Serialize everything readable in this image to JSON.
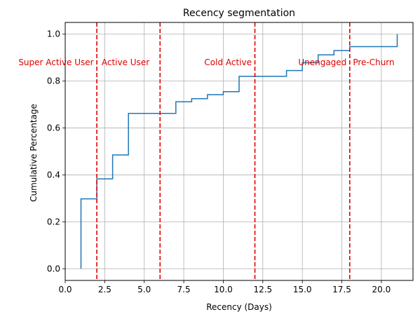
{
  "chart_data": {
    "type": "line",
    "title": "Recency segmentation",
    "xlabel": "Recency (Days)",
    "ylabel": "Cumulative Percentage",
    "xlim": [
      0,
      22
    ],
    "ylim": [
      -0.05,
      1.05
    ],
    "grid": true,
    "x_ticks": [
      0.0,
      2.5,
      5.0,
      7.5,
      10.0,
      12.5,
      15.0,
      17.5,
      20.0
    ],
    "x_tick_labels": [
      "0.0",
      "2.5",
      "5.0",
      "7.5",
      "10.0",
      "12.5",
      "15.0",
      "17.5",
      "20.0"
    ],
    "y_ticks": [
      0.0,
      0.2,
      0.4,
      0.6,
      0.8,
      1.0
    ],
    "y_tick_labels": [
      "0.0",
      "0.2",
      "0.4",
      "0.6",
      "0.8",
      "1.0"
    ],
    "series": [
      {
        "style": "step",
        "color": "#1f77b4",
        "x": [
          1,
          1,
          2,
          2,
          3,
          3,
          4,
          4,
          6,
          7,
          7,
          8,
          8,
          9,
          9,
          10,
          10,
          11,
          11,
          14,
          14,
          15,
          15,
          16,
          16,
          17,
          17,
          18,
          18,
          21,
          21
        ],
        "y": [
          0.0,
          0.298,
          0.298,
          0.383,
          0.383,
          0.485,
          0.485,
          0.662,
          0.662,
          0.662,
          0.712,
          0.712,
          0.725,
          0.725,
          0.742,
          0.742,
          0.755,
          0.755,
          0.82,
          0.82,
          0.845,
          0.845,
          0.878,
          0.878,
          0.912,
          0.912,
          0.93,
          0.93,
          0.947,
          0.947,
          1.0
        ]
      }
    ],
    "vlines": [
      {
        "x": 2,
        "color": "#e00000"
      },
      {
        "x": 6,
        "color": "#e00000"
      },
      {
        "x": 12,
        "color": "#e00000"
      },
      {
        "x": 18,
        "color": "#e00000"
      }
    ],
    "annotations": [
      {
        "text": "Super Active User",
        "x": 1.8,
        "y": 0.88,
        "anchor": "end",
        "color": "#e00000"
      },
      {
        "text": "Active User",
        "x": 2.3,
        "y": 0.88,
        "anchor": "start",
        "color": "#e00000"
      },
      {
        "text": "Cold Active",
        "x": 11.8,
        "y": 0.88,
        "anchor": "end",
        "color": "#e00000"
      },
      {
        "text": "Unengaged",
        "x": 17.8,
        "y": 0.88,
        "anchor": "end",
        "color": "#e00000"
      },
      {
        "text": "Pre-Churn",
        "x": 18.2,
        "y": 0.88,
        "anchor": "start",
        "color": "#e00000"
      }
    ]
  }
}
